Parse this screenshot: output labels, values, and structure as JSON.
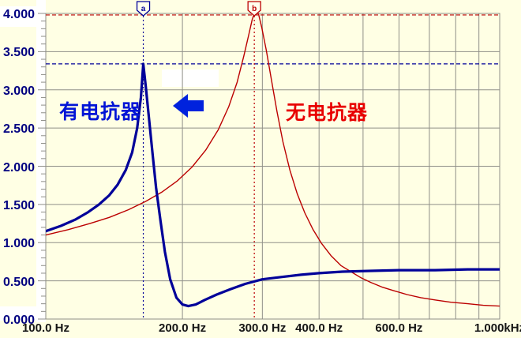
{
  "window": {
    "background": "#FFFFE4",
    "white_gutter": "#FFFFFF"
  },
  "axis": {
    "y_label_color": "#000080",
    "x_label_color": "#151515",
    "grid_color": "#8F8F88"
  },
  "annotations": {
    "with_reactor": {
      "text": "有电抗器",
      "color": "#0014D6"
    },
    "without_reactor": {
      "text": "无电抗器",
      "color": "#E80000"
    },
    "arrow": {
      "direction": "left",
      "color": "#0022DD"
    }
  },
  "chart_data": {
    "type": "line",
    "title": "",
    "x_scale": "log",
    "x_unit": "Hz",
    "xlim": [
      100,
      1000
    ],
    "ylim": [
      0,
      4
    ],
    "grid": true,
    "x_ticks": [
      {
        "value": 100,
        "label": "100.0 Hz"
      },
      {
        "value": 200,
        "label": "200.0 Hz"
      },
      {
        "value": 300,
        "label": "300.0 Hz"
      },
      {
        "value": 400,
        "label": "400.0 Hz"
      },
      {
        "value": 600,
        "label": "600.0 Hz"
      },
      {
        "value": 1000,
        "label": "1.000kHz"
      }
    ],
    "x_gridlines": [
      200,
      300,
      400,
      500,
      600,
      700,
      800,
      900
    ],
    "y_ticks": [
      {
        "value": 4.0,
        "label": "4.000"
      },
      {
        "value": 3.5,
        "label": "3.500"
      },
      {
        "value": 3.0,
        "label": "3.000"
      },
      {
        "value": 2.5,
        "label": "2.500"
      },
      {
        "value": 2.0,
        "label": "2.000"
      },
      {
        "value": 1.5,
        "label": "1.500"
      },
      {
        "value": 1.0,
        "label": "1.000"
      },
      {
        "value": 0.5,
        "label": "0.500"
      },
      {
        "value": 0.0,
        "label": "0.000"
      }
    ],
    "y_minor_step": 0.1,
    "series": [
      {
        "name": "有电抗器",
        "color": "#000099",
        "width": 3.2,
        "points": [
          [
            100,
            1.15
          ],
          [
            108,
            1.22
          ],
          [
            116,
            1.3
          ],
          [
            124,
            1.4
          ],
          [
            131,
            1.5
          ],
          [
            138,
            1.62
          ],
          [
            144,
            1.76
          ],
          [
            150,
            1.95
          ],
          [
            155,
            2.18
          ],
          [
            159,
            2.5
          ],
          [
            162,
            2.9
          ],
          [
            164,
            3.34
          ],
          [
            166,
            3.05
          ],
          [
            169,
            2.6
          ],
          [
            172,
            2.15
          ],
          [
            175,
            1.72
          ],
          [
            179,
            1.28
          ],
          [
            183,
            0.88
          ],
          [
            188,
            0.52
          ],
          [
            194,
            0.28
          ],
          [
            200,
            0.19
          ],
          [
            206,
            0.17
          ],
          [
            214,
            0.19
          ],
          [
            224,
            0.25
          ],
          [
            238,
            0.32
          ],
          [
            255,
            0.39
          ],
          [
            275,
            0.46
          ],
          [
            300,
            0.52
          ],
          [
            330,
            0.55
          ],
          [
            365,
            0.58
          ],
          [
            400,
            0.6
          ],
          [
            450,
            0.62
          ],
          [
            520,
            0.63
          ],
          [
            600,
            0.64
          ],
          [
            720,
            0.64
          ],
          [
            850,
            0.65
          ],
          [
            1000,
            0.65
          ]
        ]
      },
      {
        "name": "无电抗器",
        "color": "#BB0000",
        "width": 1.4,
        "points": [
          [
            100,
            1.1
          ],
          [
            112,
            1.17
          ],
          [
            125,
            1.25
          ],
          [
            138,
            1.33
          ],
          [
            152,
            1.43
          ],
          [
            166,
            1.54
          ],
          [
            180,
            1.66
          ],
          [
            195,
            1.81
          ],
          [
            210,
            1.99
          ],
          [
            225,
            2.21
          ],
          [
            240,
            2.48
          ],
          [
            253,
            2.78
          ],
          [
            264,
            3.1
          ],
          [
            273,
            3.44
          ],
          [
            280,
            3.72
          ],
          [
            285,
            3.92
          ],
          [
            288,
            4.0
          ],
          [
            294,
            4.0
          ],
          [
            299,
            3.82
          ],
          [
            306,
            3.52
          ],
          [
            314,
            3.14
          ],
          [
            323,
            2.72
          ],
          [
            333,
            2.32
          ],
          [
            345,
            1.95
          ],
          [
            358,
            1.64
          ],
          [
            372,
            1.39
          ],
          [
            388,
            1.17
          ],
          [
            405,
            0.99
          ],
          [
            425,
            0.83
          ],
          [
            447,
            0.7
          ],
          [
            470,
            0.62
          ],
          [
            495,
            0.54
          ],
          [
            520,
            0.48
          ],
          [
            550,
            0.42
          ],
          [
            585,
            0.37
          ],
          [
            625,
            0.32
          ],
          [
            670,
            0.28
          ],
          [
            720,
            0.25
          ],
          [
            780,
            0.22
          ],
          [
            850,
            0.2
          ],
          [
            920,
            0.18
          ],
          [
            1000,
            0.17
          ]
        ]
      }
    ],
    "cursors": [
      {
        "label": "a",
        "x": 164,
        "y": 3.34,
        "color": "#000099"
      },
      {
        "label": "b",
        "x": 288,
        "y": 3.98,
        "color": "#BB0000"
      }
    ]
  }
}
